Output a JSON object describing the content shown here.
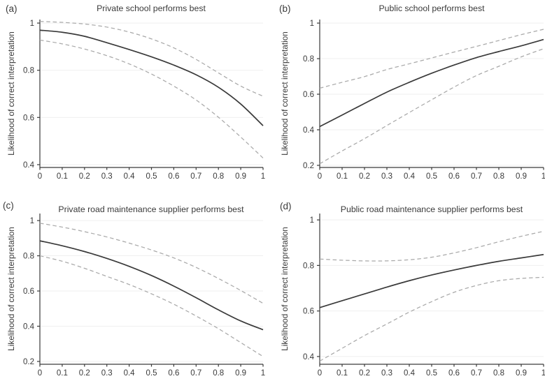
{
  "chart_data": [
    {
      "id": "a",
      "panel_label": "(a)",
      "type": "line",
      "title": "Private school performs best",
      "ylabel": "Likelihood of correct interpretation",
      "xlabel": "",
      "legend": "none",
      "grid": true,
      "x": [
        0,
        0.1,
        0.2,
        0.3,
        0.4,
        0.5,
        0.6,
        0.7,
        0.8,
        0.9,
        1
      ],
      "xtick_labels": [
        "0",
        "0.1",
        "0.2",
        "0.3",
        "0.4",
        "0.5",
        "0.6",
        "0.7",
        "0.8",
        "0.9",
        "1"
      ],
      "ytick_labels": [
        "0.4",
        "0.6",
        "0.8",
        "1"
      ],
      "xlim": [
        0,
        1
      ],
      "ylim": [
        0.388,
        1.015
      ],
      "series": [
        {
          "name": "point-estimate",
          "style": "solid",
          "color": "#3a3a3a",
          "values": [
            0.97,
            0.961,
            0.944,
            0.917,
            0.888,
            0.857,
            0.822,
            0.781,
            0.728,
            0.657,
            0.565
          ]
        },
        {
          "name": "upper-confidence-bound",
          "style": "dashed",
          "color": "#a9a9a9",
          "values": [
            1.007,
            1.003,
            0.996,
            0.983,
            0.962,
            0.933,
            0.895,
            0.846,
            0.789,
            0.733,
            0.69
          ]
        },
        {
          "name": "lower-confidence-bound",
          "style": "dashed",
          "color": "#a9a9a9",
          "values": [
            0.928,
            0.912,
            0.89,
            0.862,
            0.827,
            0.784,
            0.733,
            0.674,
            0.601,
            0.517,
            0.428
          ]
        }
      ]
    },
    {
      "id": "b",
      "panel_label": "(b)",
      "type": "line",
      "title": "Public school performs best",
      "ylabel": "Likelihood of correct interpretation",
      "xlabel": "",
      "legend": "none",
      "grid": true,
      "x": [
        0,
        0.1,
        0.2,
        0.3,
        0.4,
        0.5,
        0.6,
        0.7,
        0.8,
        0.9,
        1
      ],
      "xtick_labels": [
        "0",
        "0.1",
        "0.2",
        "0.3",
        "0.4",
        "0.5",
        "0.6",
        "0.7",
        "0.8",
        "0.9",
        "1"
      ],
      "ytick_labels": [
        "0.2",
        "0.4",
        "0.6",
        "0.8",
        "1"
      ],
      "xlim": [
        0,
        1
      ],
      "ylim": [
        0.188,
        1.02
      ],
      "series": [
        {
          "name": "point-estimate",
          "style": "solid",
          "color": "#3a3a3a",
          "values": [
            0.418,
            0.483,
            0.548,
            0.612,
            0.667,
            0.718,
            0.764,
            0.806,
            0.84,
            0.872,
            0.908
          ]
        },
        {
          "name": "upper-confidence-bound",
          "style": "dashed",
          "color": "#a9a9a9",
          "values": [
            0.634,
            0.667,
            0.699,
            0.739,
            0.771,
            0.804,
            0.837,
            0.869,
            0.902,
            0.935,
            0.965
          ]
        },
        {
          "name": "lower-confidence-bound",
          "style": "dashed",
          "color": "#a9a9a9",
          "values": [
            0.209,
            0.281,
            0.35,
            0.424,
            0.497,
            0.569,
            0.64,
            0.705,
            0.757,
            0.81,
            0.856
          ]
        }
      ]
    },
    {
      "id": "c",
      "panel_label": "(c)",
      "type": "line",
      "title": "Private road maintenance supplier performs best",
      "ylabel": "Likelihood of correct interpretation",
      "xlabel": "",
      "legend": "none",
      "grid": true,
      "x": [
        0,
        0.1,
        0.2,
        0.3,
        0.4,
        0.5,
        0.6,
        0.7,
        0.8,
        0.9,
        1
      ],
      "xtick_labels": [
        "0",
        "0.1",
        "0.2",
        "0.3",
        "0.4",
        "0.5",
        "0.6",
        "0.7",
        "0.8",
        "0.9",
        "1"
      ],
      "ytick_labels": [
        "0.2",
        "0.4",
        "0.6",
        "0.8",
        "1"
      ],
      "xlim": [
        0,
        1
      ],
      "ylim": [
        0.184,
        1.04
      ],
      "series": [
        {
          "name": "point-estimate",
          "style": "solid",
          "color": "#3a3a3a",
          "values": [
            0.885,
            0.857,
            0.824,
            0.785,
            0.74,
            0.688,
            0.628,
            0.562,
            0.493,
            0.43,
            0.38
          ]
        },
        {
          "name": "upper-confidence-bound",
          "style": "dashed",
          "color": "#a9a9a9",
          "values": [
            0.985,
            0.963,
            0.937,
            0.907,
            0.872,
            0.833,
            0.788,
            0.734,
            0.671,
            0.603,
            0.53
          ]
        },
        {
          "name": "lower-confidence-bound",
          "style": "dashed",
          "color": "#a9a9a9",
          "values": [
            0.8,
            0.769,
            0.729,
            0.683,
            0.637,
            0.584,
            0.525,
            0.458,
            0.386,
            0.307,
            0.228
          ]
        }
      ]
    },
    {
      "id": "d",
      "panel_label": "(d)",
      "type": "line",
      "title": "Public road maintenance supplier performs best",
      "ylabel": "Likelihood of correct interpretation",
      "xlabel": "",
      "legend": "none",
      "grid": true,
      "x": [
        0,
        0.1,
        0.2,
        0.3,
        0.4,
        0.5,
        0.6,
        0.7,
        0.8,
        0.9,
        1
      ],
      "xtick_labels": [
        "0",
        "0.1",
        "0.2",
        "0.3",
        "0.4",
        "0.5",
        "0.6",
        "0.7",
        "0.8",
        "0.9",
        "1"
      ],
      "ytick_labels": [
        "0.4",
        "0.6",
        "0.8",
        "1"
      ],
      "xlim": [
        0,
        1
      ],
      "ylim": [
        0.366,
        1.028
      ],
      "series": [
        {
          "name": "point-estimate",
          "style": "solid",
          "color": "#3a3a3a",
          "values": [
            0.615,
            0.645,
            0.675,
            0.705,
            0.733,
            0.758,
            0.78,
            0.8,
            0.818,
            0.833,
            0.848
          ]
        },
        {
          "name": "upper-confidence-bound",
          "style": "dashed",
          "color": "#a9a9a9",
          "values": [
            0.828,
            0.823,
            0.82,
            0.82,
            0.825,
            0.836,
            0.855,
            0.878,
            0.904,
            0.928,
            0.95
          ]
        },
        {
          "name": "lower-confidence-bound",
          "style": "dashed",
          "color": "#a9a9a9",
          "values": [
            0.38,
            0.436,
            0.492,
            0.543,
            0.595,
            0.641,
            0.682,
            0.712,
            0.733,
            0.743,
            0.748
          ]
        }
      ]
    }
  ]
}
